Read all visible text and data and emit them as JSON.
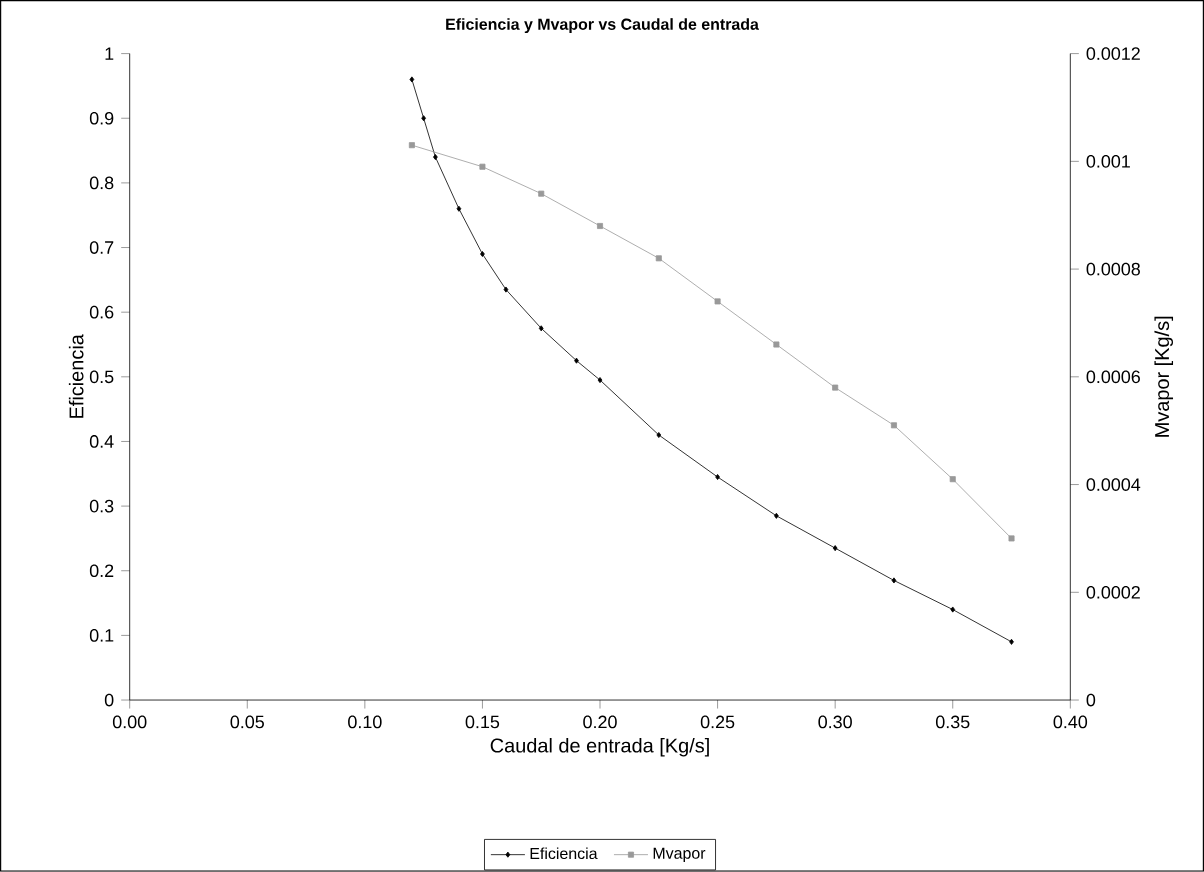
{
  "chart_data": {
    "type": "line",
    "title": "Eficiencia y Mvapor vs Caudal de entrada",
    "xlabel": "Caudal de entrada [Kg/s]",
    "ylabel": "Eficiencia",
    "y2label": "Mvapor [Kg/s]",
    "xlim": [
      0,
      0.4
    ],
    "xticks": [
      {
        "value": 0,
        "label": "0.00"
      },
      {
        "value": 0.05,
        "label": "0.05"
      },
      {
        "value": 0.1,
        "label": "0.10"
      },
      {
        "value": 0.15,
        "label": "0.15"
      },
      {
        "value": 0.2,
        "label": "0.20"
      },
      {
        "value": 0.25,
        "label": "0.25"
      },
      {
        "value": 0.3,
        "label": "0.30"
      },
      {
        "value": 0.35,
        "label": "0.35"
      },
      {
        "value": 0.4,
        "label": "0.40"
      }
    ],
    "ylim": [
      0,
      1
    ],
    "yticks": [
      0,
      0.1,
      0.2,
      0.3,
      0.4,
      0.5,
      0.6,
      0.7,
      0.8,
      0.9,
      1
    ],
    "y2lim": [
      0,
      0.0012
    ],
    "y2ticks": [
      0,
      0.0002,
      0.0004,
      0.0006,
      0.0008,
      0.001,
      0.0012
    ],
    "legend": "bottom",
    "grid": false,
    "series": [
      {
        "name": "Eficiencia",
        "color": "#000000",
        "marker": "diamond",
        "x": [
          0.12,
          0.125,
          0.13,
          0.14,
          0.15,
          0.16,
          0.175,
          0.19,
          0.2,
          0.225,
          0.25,
          0.275,
          0.3,
          0.325,
          0.35,
          0.375
        ],
        "values": [
          0.96,
          0.9,
          0.84,
          0.76,
          0.69,
          0.635,
          0.575,
          0.525,
          0.495,
          0.41,
          0.345,
          0.285,
          0.235,
          0.185,
          0.14,
          0.09
        ]
      },
      {
        "name": "Mvapor",
        "color": "#999999",
        "marker": "square",
        "axis": "y2",
        "x": [
          0.12,
          0.15,
          0.175,
          0.2,
          0.225,
          0.25,
          0.275,
          0.3,
          0.325,
          0.35,
          0.375
        ],
        "values": [
          0.00103,
          0.00099,
          0.00094,
          0.00088,
          0.00082,
          0.00074,
          0.00066,
          0.00058,
          0.00051,
          0.00041,
          0.0003
        ]
      }
    ]
  }
}
